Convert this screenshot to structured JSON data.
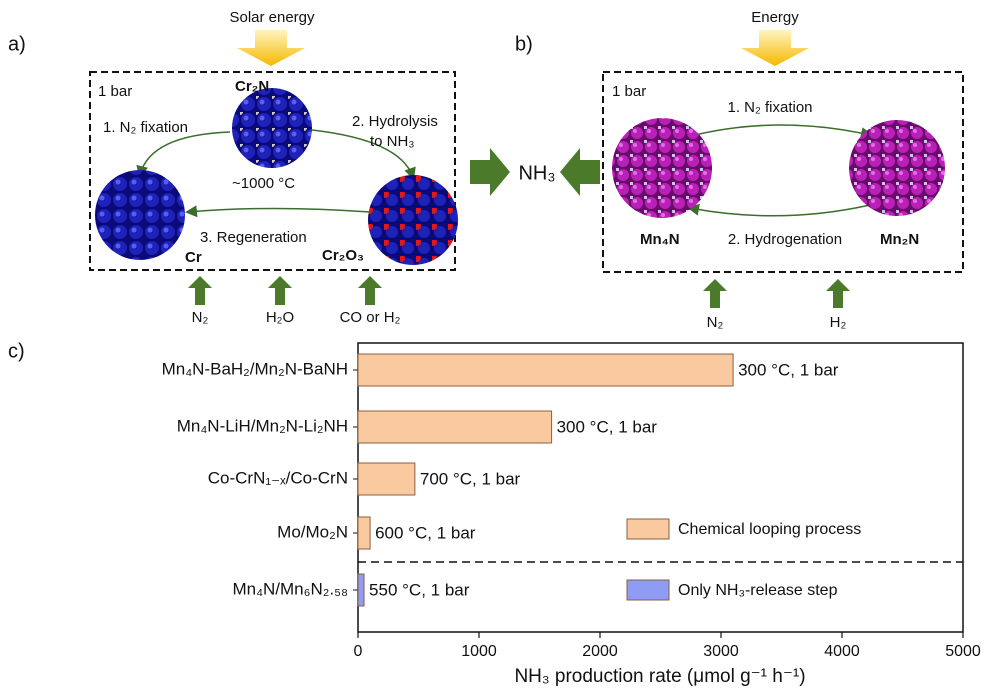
{
  "diagram_a": {
    "panel_label": "a)",
    "energy": "Solar energy",
    "pressure": "1 bar",
    "top": "Cr₂N",
    "step1": "1. N₂ fixation",
    "step2": [
      "2. Hydrolysis",
      "to NH₃"
    ],
    "temperature": "~1000 °C",
    "step3": "3. Regeneration",
    "left": "Cr",
    "right": "Cr₂O₃",
    "inputs": [
      "N₂",
      "H₂O",
      "CO or H₂"
    ]
  },
  "product": "NH₃",
  "diagram_b": {
    "panel_label": "b)",
    "energy": "Energy",
    "pressure": "1 bar",
    "step1": "1. N₂ fixation",
    "step2": "2. Hydrogenation",
    "left": "Mn₄N",
    "right": "Mn₂N",
    "inputs": [
      "N₂",
      "H₂"
    ]
  },
  "chart_data": {
    "type": "bar",
    "orientation": "horizontal",
    "panel_label": "c)",
    "categories": [
      "Mn₄N-BaH₂/Mn₂N-BaNH",
      "Mn₄N-LiH/Mn₂N-Li₂NH",
      "Co-CrN₁₋ₓ/Co-CrN",
      "Mo/Mo₂N",
      "Mn₄N/Mn₆N₂.₅₈"
    ],
    "values": [
      3100,
      1600,
      470,
      100,
      50
    ],
    "bar_labels": [
      "300 °C, 1 bar",
      "300 °C, 1 bar",
      "700 °C, 1 bar",
      "600 °C, 1 bar",
      "550 °C, 1 bar"
    ],
    "colors": [
      "#f9c9a0",
      "#f9c9a0",
      "#f9c9a0",
      "#f9c9a0",
      "#8f9cf5"
    ],
    "legend": [
      {
        "name": "Chemical looping process",
        "color": "#f9c9a0"
      },
      {
        "name": "Only NH₃-release step",
        "color": "#8f9cf5"
      }
    ],
    "xlabel": "NH₃ production rate (μmol g⁻¹ h⁻¹)",
    "xlim": [
      0,
      5000
    ],
    "xticks": [
      0,
      1000,
      2000,
      3000,
      4000,
      5000
    ]
  }
}
